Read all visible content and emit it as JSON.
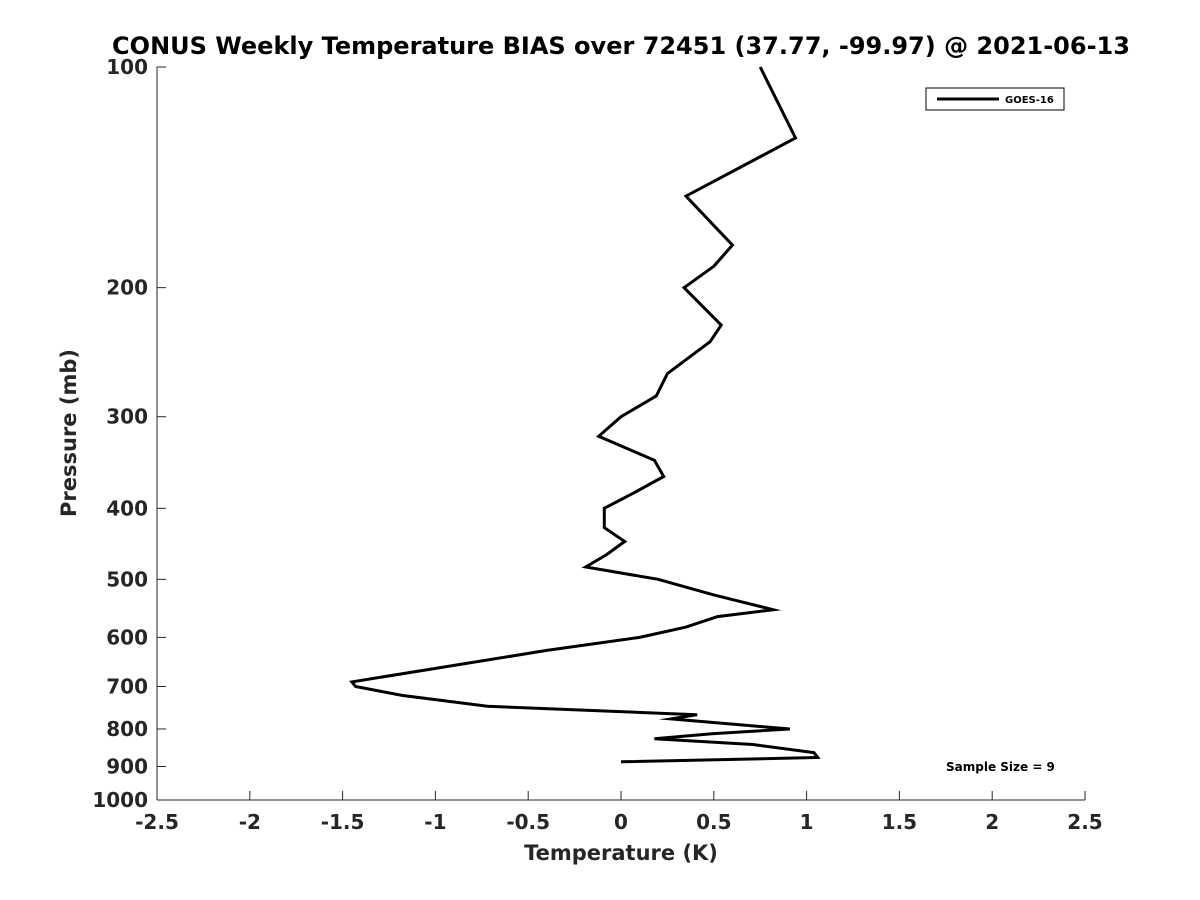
{
  "chart_data": {
    "type": "line",
    "title": "CONUS Weekly Temperature BIAS over 72451 (37.77, -99.97) @ 2021-06-13",
    "xlabel": "Temperature (K)",
    "ylabel": "Pressure (mb)",
    "xlim": [
      -2.5,
      2.5
    ],
    "ylim": [
      100,
      1000
    ],
    "y_scale": "log",
    "y_reversed": true,
    "x_ticks": [
      "-2.5",
      "-2",
      "-1.5",
      "-1",
      "-0.5",
      "0",
      "0.5",
      "1",
      "1.5",
      "2",
      "2.5"
    ],
    "y_ticks": [
      "100",
      "200",
      "300",
      "400",
      "500",
      "600",
      "700",
      "800",
      "900",
      "1000"
    ],
    "legend": {
      "position": "top-right"
    },
    "annotation": "Sample Size = 9",
    "series": [
      {
        "name": "GOES-16",
        "color": "#000000",
        "points": [
          {
            "t": 0.75,
            "p": 100
          },
          {
            "t": 0.94,
            "p": 125
          },
          {
            "t": 0.35,
            "p": 150
          },
          {
            "t": 0.6,
            "p": 175
          },
          {
            "t": 0.5,
            "p": 187
          },
          {
            "t": 0.34,
            "p": 200
          },
          {
            "t": 0.54,
            "p": 225
          },
          {
            "t": 0.48,
            "p": 237
          },
          {
            "t": 0.25,
            "p": 262
          },
          {
            "t": 0.19,
            "p": 281
          },
          {
            "t": 0.0,
            "p": 300
          },
          {
            "t": -0.12,
            "p": 319
          },
          {
            "t": 0.18,
            "p": 344
          },
          {
            "t": 0.23,
            "p": 362
          },
          {
            "t": 0.07,
            "p": 381
          },
          {
            "t": -0.09,
            "p": 400
          },
          {
            "t": -0.09,
            "p": 425
          },
          {
            "t": 0.02,
            "p": 444
          },
          {
            "t": -0.08,
            "p": 463
          },
          {
            "t": -0.19,
            "p": 481
          },
          {
            "t": 0.2,
            "p": 500
          },
          {
            "t": 0.5,
            "p": 525
          },
          {
            "t": 0.82,
            "p": 550
          },
          {
            "t": 0.52,
            "p": 562
          },
          {
            "t": 0.35,
            "p": 581
          },
          {
            "t": 0.1,
            "p": 600
          },
          {
            "t": -0.4,
            "p": 625
          },
          {
            "t": -1.45,
            "p": 690
          },
          {
            "t": -1.43,
            "p": 700
          },
          {
            "t": -1.18,
            "p": 720
          },
          {
            "t": -0.72,
            "p": 745
          },
          {
            "t": 0.41,
            "p": 765
          },
          {
            "t": 0.27,
            "p": 775
          },
          {
            "t": 0.91,
            "p": 800
          },
          {
            "t": 0.49,
            "p": 812
          },
          {
            "t": 0.18,
            "p": 825
          },
          {
            "t": 0.71,
            "p": 840
          },
          {
            "t": 1.04,
            "p": 862
          },
          {
            "t": 1.06,
            "p": 875
          },
          {
            "t": 0.0,
            "p": 887
          }
        ]
      }
    ]
  }
}
